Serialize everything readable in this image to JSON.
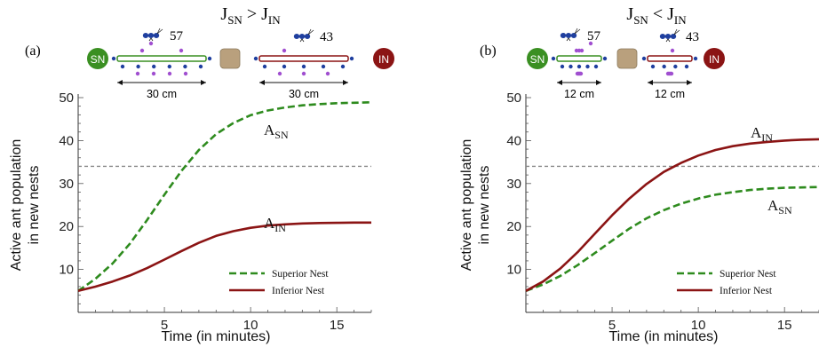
{
  "chart_data": [
    {
      "panel_label": "(a)",
      "title_parts": {
        "left_main": "J",
        "left_sub": "SN",
        "op": " > ",
        "right_main": "J",
        "right_sub": "IN"
      },
      "type": "line",
      "xlabel": "Time (in minutes)",
      "ylabel": [
        "Active ant population",
        "in new nests"
      ],
      "xlim": [
        0,
        17
      ],
      "ylim": [
        0,
        50
      ],
      "x_ticks": [
        5,
        10,
        15
      ],
      "y_ticks": [
        10,
        20,
        30,
        40,
        50
      ],
      "grid": false,
      "legend_position": "bottom-right",
      "threshold": 34,
      "series": [
        {
          "key": "sn",
          "name": "Superior Nest",
          "style": "dashed",
          "color": "#2e8b1e",
          "points": [
            [
              0,
              5
            ],
            [
              1,
              7.8
            ],
            [
              2,
              11.4
            ],
            [
              3,
              16.0
            ],
            [
              4,
              21.5
            ],
            [
              5,
              27.4
            ],
            [
              6,
              33.0
            ],
            [
              7,
              37.8
            ],
            [
              8,
              41.5
            ],
            [
              9,
              44.1
            ],
            [
              10,
              45.9
            ],
            [
              11,
              47.0
            ],
            [
              12,
              47.7
            ],
            [
              13,
              48.2
            ],
            [
              14,
              48.5
            ],
            [
              15,
              48.7
            ],
            [
              16,
              48.8
            ],
            [
              17,
              48.9
            ]
          ],
          "label_main": "A",
          "label_sub": "SN"
        },
        {
          "key": "in",
          "name": "Inferior Nest",
          "style": "solid",
          "color": "#8b1414",
          "points": [
            [
              0,
              5
            ],
            [
              1,
              6.0
            ],
            [
              2,
              7.2
            ],
            [
              3,
              8.6
            ],
            [
              4,
              10.3
            ],
            [
              5,
              12.3
            ],
            [
              6,
              14.3
            ],
            [
              7,
              16.2
            ],
            [
              8,
              17.8
            ],
            [
              9,
              18.9
            ],
            [
              10,
              19.7
            ],
            [
              11,
              20.2
            ],
            [
              12,
              20.5
            ],
            [
              13,
              20.7
            ],
            [
              14,
              20.8
            ],
            [
              15,
              20.85
            ],
            [
              16,
              20.9
            ],
            [
              17,
              20.9
            ]
          ],
          "label_main": "A",
          "label_sub": "IN"
        }
      ],
      "schematic": {
        "sn_label": "SN",
        "in_label": "IN",
        "sn_count": "57",
        "in_count": "43",
        "sn_distance": "30 cm",
        "in_distance": "30 cm"
      }
    },
    {
      "panel_label": "(b)",
      "title_parts": {
        "left_main": "J",
        "left_sub": "SN",
        "op": " < ",
        "right_main": "J",
        "right_sub": "IN"
      },
      "type": "line",
      "xlabel": "Time (in minutes)",
      "ylabel": [
        "Active ant population",
        "in new nests"
      ],
      "xlim": [
        0,
        17
      ],
      "ylim": [
        0,
        50
      ],
      "x_ticks": [
        5,
        10,
        15
      ],
      "y_ticks": [
        10,
        20,
        30,
        40,
        50
      ],
      "grid": false,
      "legend_position": "bottom-right",
      "threshold": 34,
      "series": [
        {
          "key": "sn",
          "name": "Superior Nest",
          "style": "dashed",
          "color": "#2e8b1e",
          "points": [
            [
              0,
              5
            ],
            [
              1,
              6.5
            ],
            [
              2,
              8.5
            ],
            [
              3,
              11.0
            ],
            [
              4,
              13.8
            ],
            [
              5,
              16.7
            ],
            [
              6,
              19.5
            ],
            [
              7,
              21.9
            ],
            [
              8,
              23.8
            ],
            [
              9,
              25.3
            ],
            [
              10,
              26.5
            ],
            [
              11,
              27.4
            ],
            [
              12,
              28.0
            ],
            [
              13,
              28.5
            ],
            [
              14,
              28.8
            ],
            [
              15,
              29.0
            ],
            [
              16,
              29.1
            ],
            [
              17,
              29.2
            ]
          ],
          "label_main": "A",
          "label_sub": "SN"
        },
        {
          "key": "in",
          "name": "Inferior Nest",
          "style": "solid",
          "color": "#8b1414",
          "points": [
            [
              0,
              5
            ],
            [
              1,
              7.2
            ],
            [
              2,
              10.2
            ],
            [
              3,
              14.0
            ],
            [
              4,
              18.3
            ],
            [
              5,
              22.6
            ],
            [
              6,
              26.5
            ],
            [
              7,
              29.9
            ],
            [
              8,
              32.7
            ],
            [
              9,
              34.8
            ],
            [
              10,
              36.5
            ],
            [
              11,
              37.8
            ],
            [
              12,
              38.7
            ],
            [
              13,
              39.3
            ],
            [
              14,
              39.7
            ],
            [
              15,
              40.0
            ],
            [
              16,
              40.2
            ],
            [
              17,
              40.3
            ]
          ],
          "label_main": "A",
          "label_sub": "IN"
        }
      ],
      "schematic": {
        "sn_label": "SN",
        "in_label": "IN",
        "sn_count": "57",
        "in_count": "43",
        "sn_distance": "12 cm",
        "in_distance": "12 cm"
      }
    }
  ]
}
